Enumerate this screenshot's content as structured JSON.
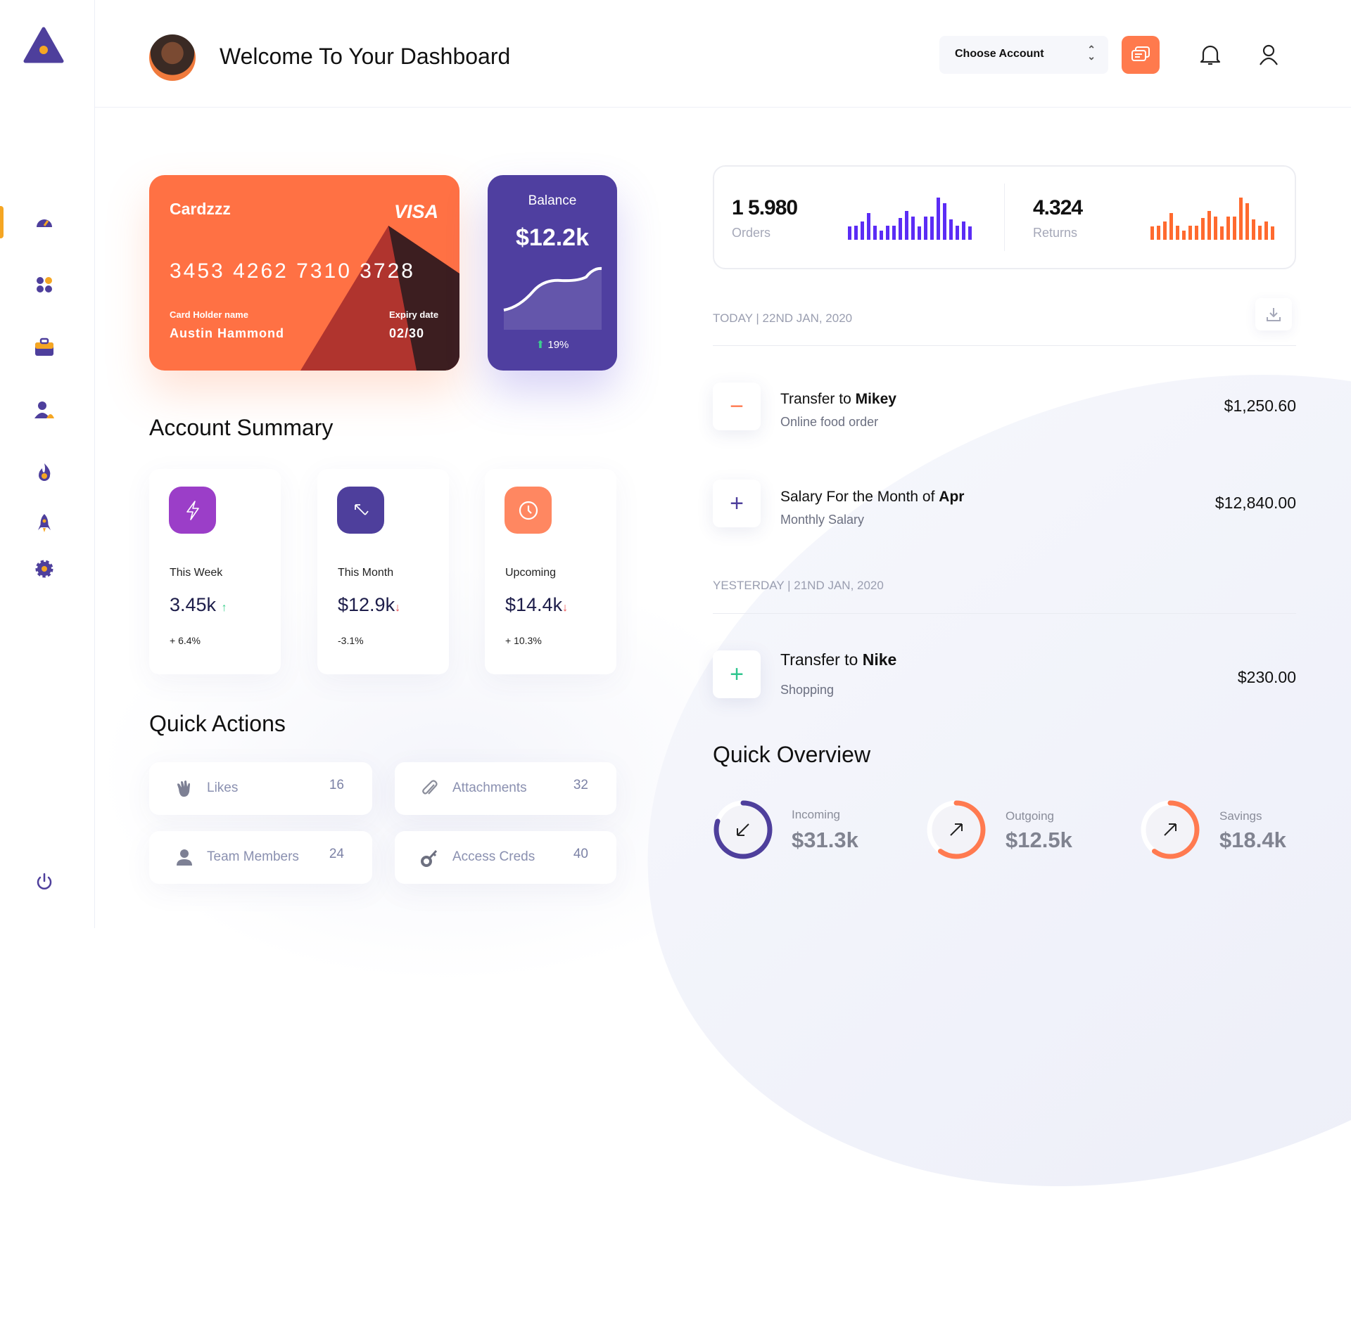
{
  "header": {
    "title": "Welcome To Your Dashboard",
    "account_select": "Choose Account"
  },
  "sidebar": {
    "items": [
      "dashboard",
      "apps",
      "portfolio",
      "users",
      "trending",
      "launch",
      "settings"
    ],
    "active": "dashboard",
    "logout": "power"
  },
  "card": {
    "brand": "Cardzzz",
    "network": "VISA",
    "number": "3453 4262 7310 3728",
    "holder_label": "Card Holder name",
    "holder": "Austin Hammond",
    "expiry_label": "Expiry date",
    "expiry": "02/30"
  },
  "balance": {
    "label": "Balance",
    "value": "$12.2k",
    "change": "19%"
  },
  "account_summary": {
    "title": "Account Summary",
    "cards": [
      {
        "label": "This Week",
        "value": "3.45k",
        "trend": "up",
        "change": "+ 6.4%",
        "color": "#9b3ec8"
      },
      {
        "label": "This Month",
        "value": "$12.9k",
        "trend": "down",
        "change": "-3.1%",
        "color": "#4e3f9c"
      },
      {
        "label": "Upcoming",
        "value": "$14.4k",
        "trend": "down",
        "change": "+ 10.3%",
        "color": "#ff8761"
      }
    ]
  },
  "quick_actions": {
    "title": "Quick Actions",
    "items": [
      {
        "label": "Likes",
        "count": "16",
        "icon": "wave-hand-icon"
      },
      {
        "label": "Attachments",
        "count": "32",
        "icon": "paperclip-icon"
      },
      {
        "label": "Team Members",
        "count": "24",
        "icon": "user-icon"
      },
      {
        "label": "Access Creds",
        "count": "40",
        "icon": "key-icon"
      }
    ]
  },
  "stats": {
    "orders": {
      "value": "1 5.980",
      "label": "Orders",
      "color": "#5b2cf5"
    },
    "returns": {
      "value": "4.324",
      "label": "Returns",
      "color": "#ff6a2f"
    },
    "bars": [
      55,
      60,
      77,
      112,
      60,
      37,
      60,
      60,
      92,
      122,
      97,
      55,
      97,
      97,
      177,
      152,
      85,
      60,
      77,
      55
    ]
  },
  "transactions": {
    "today_label": "TODAY | 22ND JAN, 2020",
    "yesterday_label": "YESTERDAY | 21ND JAN, 2020",
    "items": [
      {
        "title_prefix": "Transfer to ",
        "title_bold": "Mikey",
        "subtitle": "Online food order",
        "amount": "$1,250.60",
        "sign": "−",
        "color": "#ff7a50"
      },
      {
        "title_prefix": "Salary For the Month of ",
        "title_bold": "Apr",
        "subtitle": "Monthly Salary",
        "amount": "$12,840.00",
        "sign": "+",
        "color": "#4e3f9c"
      },
      {
        "title_prefix": "Transfer to ",
        "title_bold": "Nike",
        "subtitle": "Shopping",
        "amount": "$230.00",
        "sign": "+",
        "color": "#2fc58e"
      }
    ]
  },
  "quick_overview": {
    "title": "Quick Overview",
    "items": [
      {
        "label": "Incoming",
        "value": "$31.3k",
        "progress": 0.8,
        "color": "#4e3f9c"
      },
      {
        "label": "Outgoing",
        "value": "$12.5k",
        "progress": 0.6,
        "color": "#ff7a50"
      },
      {
        "label": "Savings",
        "value": "$18.4k",
        "progress": 0.6,
        "color": "#ff7a50"
      }
    ]
  }
}
